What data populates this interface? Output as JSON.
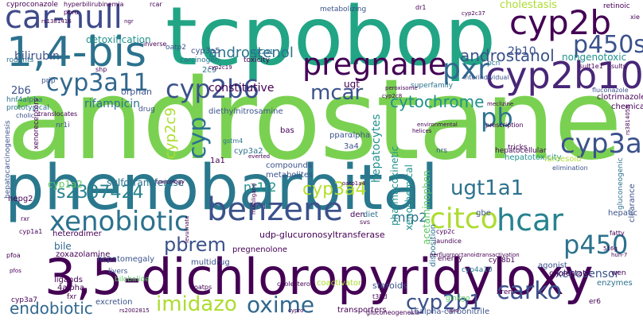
{
  "colors": {
    "purple": "#440154",
    "indigo": "#3b528b",
    "blue": "#2c728e",
    "teal": "#21918c",
    "green": "#28ae80",
    "lime": "#5ec962",
    "yellow": "#addc30"
  },
  "words": [
    {
      "text": "androstane",
      "color": "#7ad151"
    },
    {
      "text": "tcpobop",
      "color": "#21a585"
    },
    {
      "text": "phenobarbital",
      "color": "#2a788e"
    },
    {
      "text": "3,5-dichloropyridyloxy",
      "color": "#440154"
    },
    {
      "text": "1,4-bis",
      "color": "#2c728e"
    },
    {
      "text": "car-null",
      "color": "#3e4a89"
    },
    {
      "text": "cyp2b",
      "color": "#440154"
    },
    {
      "text": "cyp2b10",
      "color": "#482677"
    },
    {
      "text": "benzene",
      "color": "#3b528b"
    },
    {
      "text": "xenobiotic",
      "color": "#2c728e"
    },
    {
      "text": "cyp3a11",
      "color": "#31688e"
    },
    {
      "text": "cyp2b6",
      "color": "#3b528b"
    },
    {
      "text": "pregnane",
      "color": "#440154"
    },
    {
      "text": "pxr",
      "color": "#31688e"
    },
    {
      "text": "p450s",
      "color": "#3b528b"
    },
    {
      "text": "citco",
      "color": "#addc30"
    },
    {
      "text": "hcar",
      "color": "#26828e"
    },
    {
      "text": "p450",
      "color": "#2c728e"
    },
    {
      "text": "cyp3a",
      "color": "#3b528b"
    },
    {
      "text": "oxime",
      "color": "#31688e"
    },
    {
      "text": "imidazo",
      "color": "#addc30"
    },
    {
      "text": "carko",
      "color": "#3b528b"
    },
    {
      "text": "endobiotic",
      "color": "#31688e"
    },
    {
      "text": "cyp2b1",
      "color": "#3b528b"
    },
    {
      "text": "pbrem",
      "color": "#3b528b"
    },
    {
      "text": "cyp3a4",
      "color": "#b5de2b"
    },
    {
      "text": "rs2307424",
      "color": "#26828e"
    },
    {
      "text": "ugt1a1",
      "color": "#2c728e"
    },
    {
      "text": "androstenol",
      "color": "#2c728e"
    },
    {
      "text": "androstanol",
      "color": "#3b528b"
    },
    {
      "text": "mcar",
      "color": "#3b528b"
    },
    {
      "text": "cytochrome",
      "color": "#21918c"
    },
    {
      "text": "pb",
      "color": "#2c728e"
    },
    {
      "text": "cyp",
      "color": "#2c728e"
    },
    {
      "text": "bilirubin",
      "color": "#3b528b"
    },
    {
      "text": "constitutive",
      "color": "#440154"
    },
    {
      "text": "rifampicin",
      "color": "#2c728e"
    },
    {
      "text": "detoxification",
      "color": "#21918c"
    },
    {
      "text": "xenosensor",
      "color": "#3b528b"
    },
    {
      "text": "cholestasis",
      "color": "#addc30"
    },
    {
      "text": "cyp2c9",
      "color": "#addc30"
    },
    {
      "text": "hepatocytes",
      "color": "#21918c"
    },
    {
      "text": "mrp2",
      "color": "#2c728e"
    },
    {
      "text": "nr1i2",
      "color": "#21918c"
    },
    {
      "text": "cyp1a2",
      "color": "#5ec962"
    },
    {
      "text": "2b10",
      "color": "#3b528b"
    },
    {
      "text": "2b6",
      "color": "#3b528b"
    },
    {
      "text": "nongenotoxic",
      "color": "#21918c"
    },
    {
      "text": "bile",
      "color": "#31688e"
    },
    {
      "text": "ugt",
      "color": "#440154"
    },
    {
      "text": "pharmacokinetic",
      "color": "#21918c"
    },
    {
      "text": "xenochemical",
      "color": "#21918c"
    },
    {
      "text": "hepatic",
      "color": "#3b528b"
    },
    {
      "text": "ligands",
      "color": "#440154"
    },
    {
      "text": "udp-glucuronosyltransferase",
      "color": "#440154"
    },
    {
      "text": "steroids",
      "color": "#3b528b"
    },
    {
      "text": "multidrug",
      "color": "#3b528b"
    },
    {
      "text": "agonist",
      "color": "#3b528b"
    },
    {
      "text": "cholestatic",
      "color": "#440154"
    },
    {
      "text": "enzymes",
      "color": "#2c728e"
    },
    {
      "text": "clotrimazole",
      "color": "#440154"
    },
    {
      "text": "chemicals",
      "color": "#440154"
    },
    {
      "text": "hepatotoxicity",
      "color": "#21918c"
    },
    {
      "text": "hepatocellular",
      "color": "#440154"
    },
    {
      "text": "sulfotransferase",
      "color": "#2c728e"
    },
    {
      "text": "metabolites",
      "color": "#3b528b"
    },
    {
      "text": "compounds",
      "color": "#3b528b"
    },
    {
      "text": "heterodimer",
      "color": "#440154"
    },
    {
      "text": "zoxazolamine",
      "color": "#440154"
    },
    {
      "text": "hepatomegaly",
      "color": "#3b528b"
    },
    {
      "text": "excretion",
      "color": "#3b528b"
    },
    {
      "text": "transporters",
      "color": "#440154"
    },
    {
      "text": "16alpha-carbonitrile",
      "color": "#3b528b"
    },
    {
      "text": "pregnenolone",
      "color": "#440154"
    },
    {
      "text": "acetaminophen",
      "color": "#5ec962"
    },
    {
      "text": "cyp3a5",
      "color": "#3b528b"
    },
    {
      "text": "2c9",
      "color": "#2c728e"
    },
    {
      "text": "toxicity",
      "color": "#440154"
    },
    {
      "text": "sult2a1",
      "color": "#2c728e"
    },
    {
      "text": "carcinogen",
      "color": "#2c728e"
    },
    {
      "text": "diethylnitrosamine",
      "color": "#3b528b"
    },
    {
      "text": "metabolizing",
      "color": "#3b528b"
    },
    {
      "text": "hnf4alpha",
      "color": "#2c728e"
    },
    {
      "text": "prototypical",
      "color": "#2c728e"
    },
    {
      "text": "superfamily",
      "color": "#2c728e"
    },
    {
      "text": "interindividual",
      "color": "#3b528b"
    },
    {
      "text": "pcn",
      "color": "#2c728e"
    },
    {
      "text": "pparαlpha",
      "color": "#3b528b"
    },
    {
      "text": "3a4",
      "color": "#3b528b"
    },
    {
      "text": "gstm4",
      "color": "#2c728e"
    },
    {
      "text": "cyp3a2",
      "color": "#2c728e"
    },
    {
      "text": "1a1",
      "color": "#440154"
    },
    {
      "text": "hepg2",
      "color": "#440154"
    },
    {
      "text": "fed",
      "color": "#3b528b"
    },
    {
      "text": "bas",
      "color": "#440154"
    },
    {
      "text": "den",
      "color": "#440154"
    },
    {
      "text": "diet",
      "color": "#2c728e"
    },
    {
      "text": "gbe",
      "color": "#3b528b"
    },
    {
      "text": "cyp1a1",
      "color": "#440154"
    },
    {
      "text": "pfoa",
      "color": "#440154"
    },
    {
      "text": "cyp3a7",
      "color": "#440154"
    },
    {
      "text": "fxr",
      "color": "#440154"
    },
    {
      "text": "4alpha",
      "color": "#440154"
    },
    {
      "text": "bilobalide",
      "color": "#5ec962"
    },
    {
      "text": "rodents",
      "color": "#2c728e"
    },
    {
      "text": "prip",
      "color": "#3b528b"
    },
    {
      "text": "orphan",
      "color": "#3b528b"
    },
    {
      "text": "nr1i",
      "color": "#3b528b"
    },
    {
      "text": "xenoreceptors",
      "color": "#440154"
    },
    {
      "text": "hepatocarcinogenesis",
      "color": "#3b528b"
    },
    {
      "text": "cholic",
      "color": "#3b528b"
    },
    {
      "text": "drug",
      "color": "#3b528b"
    },
    {
      "text": "rxr",
      "color": "#440154"
    },
    {
      "text": "livers",
      "color": "#3b528b"
    },
    {
      "text": "oatps",
      "color": "#440154"
    },
    {
      "text": "cholesterol",
      "color": "#440154"
    },
    {
      "text": "coactivator",
      "color": "#addc30"
    },
    {
      "text": "energy",
      "color": "#440154"
    },
    {
      "text": "cyp8b1",
      "color": "#440154"
    },
    {
      "text": "xrem",
      "color": "#440154"
    },
    {
      "text": "er6",
      "color": "#440154"
    },
    {
      "text": "ginkgo",
      "color": "#5ec962"
    },
    {
      "text": "t38d",
      "color": "#440154"
    },
    {
      "text": "gluconeogenesis",
      "color": "#440154"
    },
    {
      "text": "cyp4a10",
      "color": "#2c728e"
    },
    {
      "text": "wen",
      "color": "#440154"
    },
    {
      "text": "fatty",
      "color": "#440154"
    },
    {
      "text": "clearance",
      "color": "#3b528b"
    },
    {
      "text": "gluconeogenic",
      "color": "#2c728e"
    },
    {
      "text": "farnesoid",
      "color": "#addc30"
    },
    {
      "text": "elimination",
      "color": "#3b528b"
    },
    {
      "text": "fluconazole",
      "color": "#3b528b"
    },
    {
      "text": "prescription",
      "color": "#440154"
    },
    {
      "text": "retinoic",
      "color": "#440154"
    },
    {
      "text": "sult1e1",
      "color": "#440154"
    },
    {
      "text": "tricks",
      "color": "#440154"
    },
    {
      "text": "svs",
      "color": "#440154"
    },
    {
      "text": "nrs",
      "color": "#3b528b"
    },
    {
      "text": "cyp2c19",
      "color": "#440154"
    },
    {
      "text": "cyp2c",
      "color": "#440154"
    },
    {
      "text": "jaundice",
      "color": "#440154"
    },
    {
      "text": "disposition",
      "color": "#2c728e"
    },
    {
      "text": "oatp2",
      "color": "#3b528b"
    },
    {
      "text": "translocates",
      "color": "#440154"
    },
    {
      "text": "cyproconazole",
      "color": "#440154"
    },
    {
      "text": "hyperbilirubinemia",
      "color": "#440154"
    },
    {
      "text": "pbru",
      "color": "#440154"
    },
    {
      "text": "rs1381416",
      "color": "#440154"
    },
    {
      "text": "ngr",
      "color": "#440154"
    },
    {
      "text": "rcar",
      "color": "#440154"
    },
    {
      "text": "dr1",
      "color": "#440154"
    },
    {
      "text": "cyp2c37",
      "color": "#440154"
    },
    {
      "text": "inverse",
      "color": "#440154"
    },
    {
      "text": "shp",
      "color": "#440154"
    },
    {
      "text": "xie",
      "color": "#440154"
    },
    {
      "text": "sults",
      "color": "#440154"
    },
    {
      "text": "helices",
      "color": "#440154"
    },
    {
      "text": "environmental",
      "color": "#440154"
    },
    {
      "text": "everted",
      "color": "#440154"
    },
    {
      "text": "toxicology",
      "color": "#440154"
    },
    {
      "text": "multiligand",
      "color": "#440154"
    },
    {
      "text": "levulinate",
      "color": "#440154"
    },
    {
      "text": "pfos",
      "color": "#440154"
    },
    {
      "text": "cypro",
      "color": "#440154"
    },
    {
      "text": "rs2002815",
      "color": "#440154"
    },
    {
      "text": "oatp1a4",
      "color": "#440154"
    },
    {
      "text": "transactivation",
      "color": "#440154"
    },
    {
      "text": "perfluorooctanoic",
      "color": "#440154"
    },
    {
      "text": "lipid",
      "color": "#440154"
    },
    {
      "text": "516g",
      "color": "#440154"
    },
    {
      "text": "huh-7",
      "color": "#440154"
    },
    {
      "text": "meclizine",
      "color": "#440154"
    },
    {
      "text": "peroxisome",
      "color": "#440154"
    },
    {
      "text": "rs3814058",
      "color": "#440154"
    },
    {
      "text": "cyp2c8",
      "color": "#440154"
    },
    {
      "text": "p450s-x",
      "color": "#440154"
    }
  ]
}
